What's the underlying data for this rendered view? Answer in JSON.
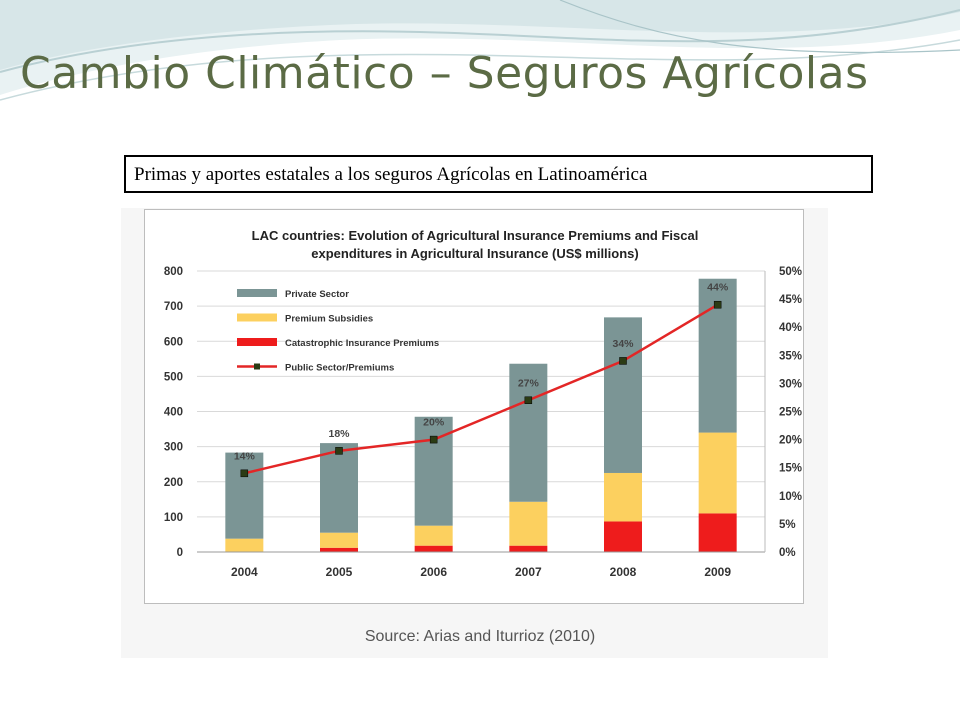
{
  "slide": {
    "title": "Cambio Climático – Seguros Agrícolas",
    "caption": "Primas y aportes estatales a los seguros Agrícolas en Latinoamérica",
    "source": "Source: Arias and Iturrioz (2010)"
  },
  "colors": {
    "title": "#5b6b45",
    "private": "#7b9595",
    "subsidies": "#fcd05f",
    "catastrophic": "#ee1c1c",
    "line": "#e32626",
    "marker": "#2b3b14"
  },
  "chart_data": {
    "type": "bar",
    "stacked": true,
    "title": "LAC countries: Evolution of Agricultural Insurance Premiums and Fiscal expenditures in Agricultural Insurance (US$ millions)",
    "categories": [
      "2004",
      "2005",
      "2006",
      "2007",
      "2008",
      "2009"
    ],
    "ylim": [
      0,
      800
    ],
    "y_ticks": [
      "800",
      "700",
      "600",
      "500",
      "400",
      "300",
      "200",
      "100",
      "0"
    ],
    "y2lim": [
      0,
      50
    ],
    "y2_ticks": [
      "50%",
      "45%",
      "40%",
      "35%",
      "30%",
      "25%",
      "20%",
      "15%",
      "10%",
      "5%",
      "0%"
    ],
    "grid": true,
    "legend_position": "top-left",
    "series": [
      {
        "name": "Catastrophic Insurance Premiums",
        "values": [
          0,
          12,
          18,
          18,
          87,
          110
        ]
      },
      {
        "name": "Premium Subsidies",
        "values": [
          38,
          43,
          57,
          125,
          138,
          230
        ]
      },
      {
        "name": "Private Sector",
        "values": [
          245,
          255,
          310,
          393,
          443,
          438
        ]
      }
    ],
    "line": {
      "name": "Public Sector/Premiums",
      "axis": "right",
      "values": [
        14,
        18,
        20,
        27,
        34,
        44
      ],
      "labels": [
        "14%",
        "18%",
        "20%",
        "27%",
        "34%",
        "44%"
      ]
    },
    "legend_order": [
      "Private Sector",
      "Premium Subsidies",
      "Catastrophic Insurance Premiums",
      "Public Sector/Premiums"
    ]
  }
}
